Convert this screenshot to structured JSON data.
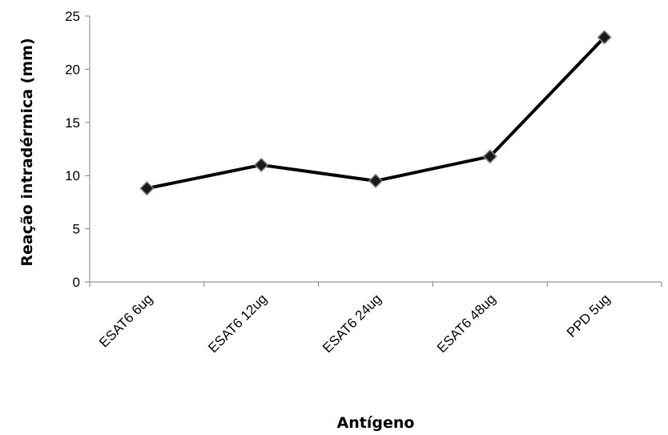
{
  "chart_data": {
    "type": "line",
    "title": "",
    "xlabel": "Antígeno",
    "ylabel": "Reação intradérmica (mm)",
    "categories": [
      "ESAT6 6ug",
      "ESAT6 12ug",
      "ESAT6 24ug",
      "ESAT6 48ug",
      "PPD  5ug"
    ],
    "series": [
      {
        "values": [
          8.8,
          11.0,
          9.5,
          11.8,
          23.0
        ],
        "color": "#000000",
        "marker": "diamond"
      }
    ],
    "ylim": [
      0,
      25
    ],
    "yticks": [
      0,
      5,
      10,
      15,
      20,
      25
    ],
    "grid": false,
    "legend": "none"
  }
}
